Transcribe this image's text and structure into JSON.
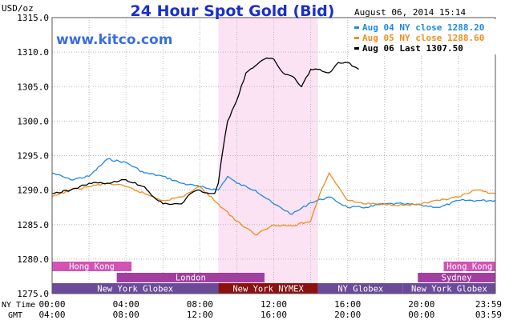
{
  "chart_data": {
    "type": "line",
    "title": "24 Hour Spot Gold (Bid)",
    "watermark": "www.kitco.com",
    "unit_label": "USD/oz",
    "timestamp": "August 06, 2014 15:14",
    "ylim": [
      1275.0,
      1315.0
    ],
    "y_ticks": [
      "1275.0",
      "1280.0",
      "1285.0",
      "1290.0",
      "1295.0",
      "1300.0",
      "1305.0",
      "1310.0",
      "1315.0"
    ],
    "x_range_ny_hours": [
      0,
      24
    ],
    "x_row_labels": {
      "ny": "NY Time",
      "gmt": "GMT"
    },
    "x_ticks_ny": [
      "00:00",
      "04:00",
      "08:00",
      "12:00",
      "16:00",
      "20:00",
      "23:59"
    ],
    "x_ticks_gmt": [
      "04:00",
      "08:00",
      "12:00",
      "16:00",
      "20:00",
      "00:00",
      "03:59"
    ],
    "highlight_ny_hours": [
      9.0,
      14.4
    ],
    "highlight_color": "#fbe3f3",
    "series": [
      {
        "name": "Aug 04 NY close 1288.20",
        "color": "#1e88e5",
        "x": [
          0,
          1,
          2,
          3,
          4,
          5,
          6,
          7,
          8,
          9,
          9.5,
          10,
          11,
          12,
          13,
          14,
          15,
          16,
          17,
          18,
          19,
          20,
          21,
          22,
          23,
          23.99
        ],
        "y": [
          1292.5,
          1291.5,
          1292,
          1294.5,
          1294,
          1292.5,
          1292,
          1291,
          1290.5,
          1290,
          1292,
          1291,
          1290,
          1288,
          1286.5,
          1288.2,
          1289,
          1287.5,
          1287.5,
          1288,
          1288,
          1287.8,
          1287.5,
          1288.5,
          1288.5,
          1288.5
        ]
      },
      {
        "name": "Aug 05 NY close 1288.60",
        "color": "#f28c1e",
        "x": [
          0,
          1,
          2,
          3,
          4,
          5,
          6,
          7,
          8,
          9,
          10,
          11,
          12,
          13,
          14,
          14.5,
          15,
          15.5,
          16,
          17,
          18,
          19,
          20,
          21,
          22,
          23,
          23.99
        ],
        "y": [
          1289,
          1290,
          1290.5,
          1291,
          1290.5,
          1289.5,
          1288.5,
          1289,
          1290.5,
          1288,
          1285.5,
          1283.5,
          1285,
          1284.8,
          1285.5,
          1289.5,
          1292.5,
          1290.5,
          1288.5,
          1288,
          1288,
          1287.8,
          1288,
          1288.5,
          1289,
          1290,
          1289.5
        ]
      },
      {
        "name": "Aug 06 Last 1307.50",
        "color": "#000000",
        "x": [
          0,
          1,
          2,
          3,
          4,
          5,
          5.5,
          6,
          7,
          7.5,
          8,
          8.5,
          8.8,
          9,
          9.2,
          9.5,
          10,
          10.5,
          11,
          11.5,
          12,
          12.5,
          13,
          13.5,
          14,
          14.5,
          15,
          15.5,
          16,
          16.6
        ],
        "y": [
          1289.5,
          1290,
          1291,
          1291,
          1291.5,
          1290.5,
          1289,
          1288,
          1288,
          1289.5,
          1290,
          1289.5,
          1289.5,
          1291,
          1295,
          1300,
          1303,
          1307,
          1308,
          1309,
          1309,
          1307,
          1306.5,
          1305,
          1307.5,
          1307.5,
          1307,
          1308.5,
          1308.5,
          1307.5
        ]
      }
    ],
    "sessions": {
      "row1": [
        {
          "label": "Hong Kong",
          "start": 0.0,
          "end": 4.3,
          "color": "#d253b4"
        },
        {
          "label": "Hong Kong",
          "start": 21.2,
          "end": 24.0,
          "color": "#d253b4"
        }
      ],
      "row2": [
        {
          "label": "London",
          "start": 3.5,
          "end": 11.5,
          "color": "#a03fa0"
        },
        {
          "label": "Sydney",
          "start": 19.8,
          "end": 24.0,
          "color": "#a03fa0"
        }
      ],
      "row3": [
        {
          "label": "New York Globex",
          "start": 0.0,
          "end": 9.0,
          "color": "#6b4a9a",
          "text_color": "#ffffff"
        },
        {
          "label": "New York NYMEX",
          "start": 9.0,
          "end": 14.4,
          "color": "#8b1010",
          "text_color": "#ffffff"
        },
        {
          "label": "NY Globex",
          "start": 14.4,
          "end": 19.0,
          "color": "#6b4a9a",
          "text_color": "#ffffff"
        },
        {
          "label": "New York Globex",
          "start": 19.0,
          "end": 24.0,
          "color": "#6b4a9a",
          "text_color": "#ffffff"
        }
      ]
    }
  }
}
